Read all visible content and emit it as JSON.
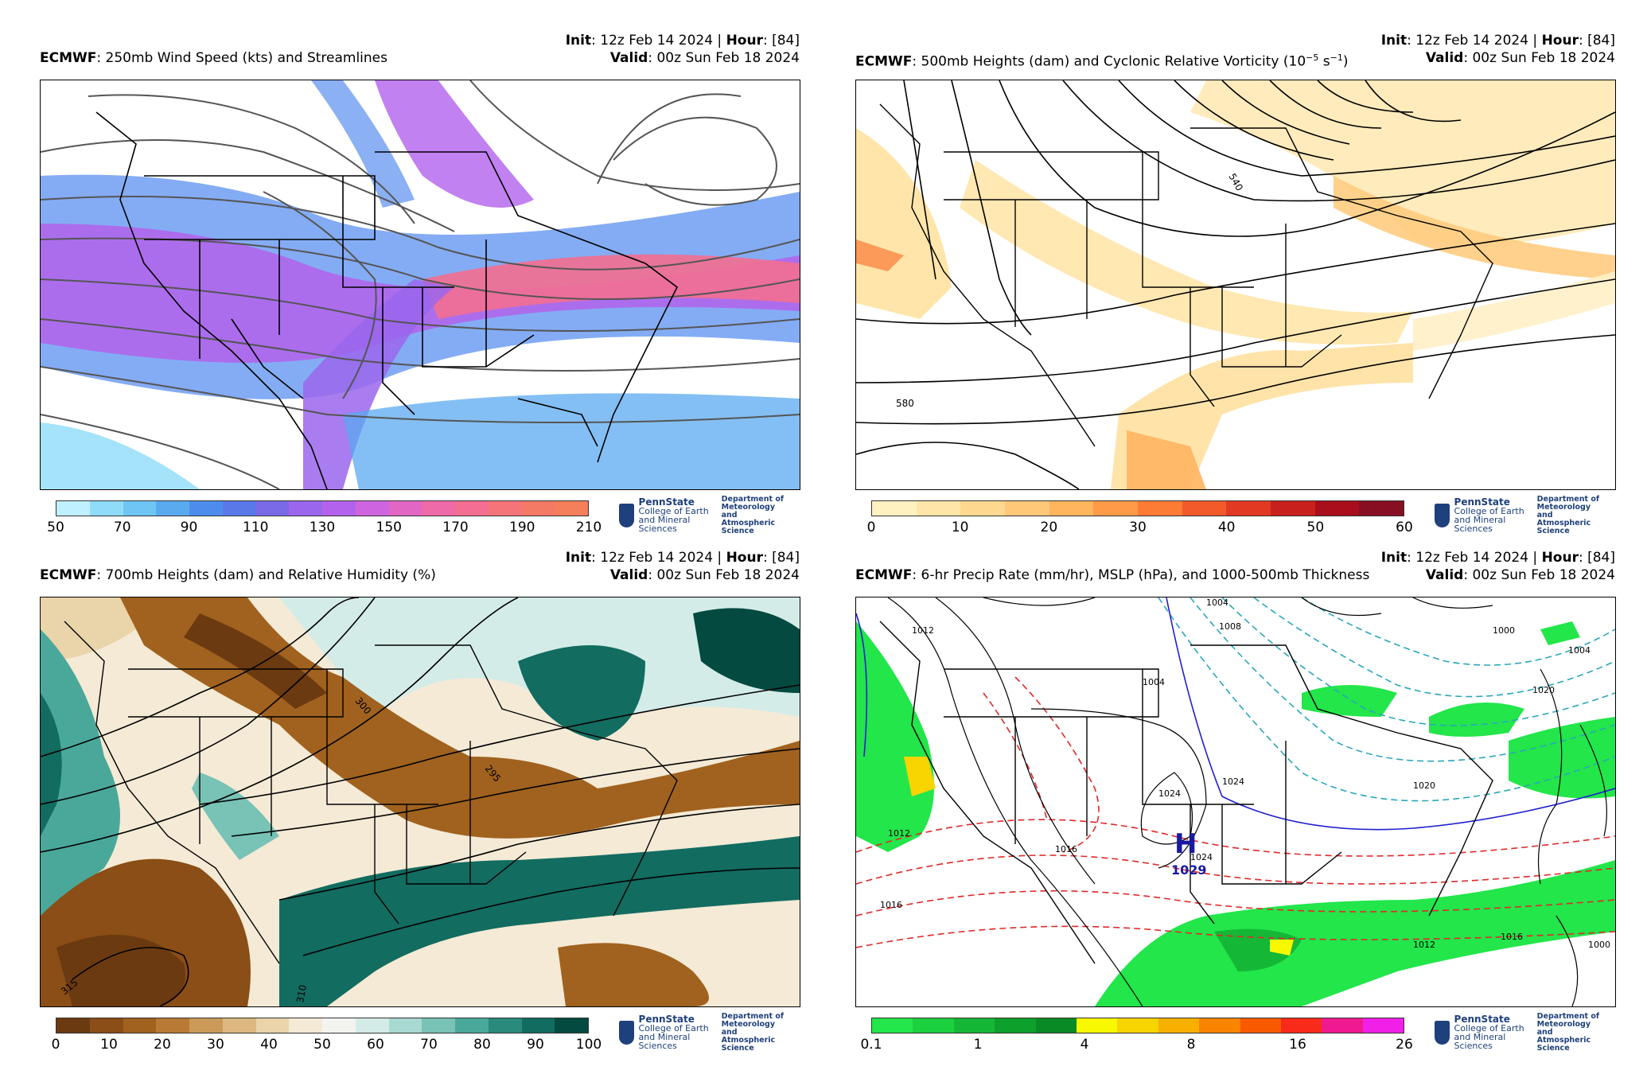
{
  "common": {
    "init_label": "Init",
    "init_value": ": 12z Feb 14 2024 | ",
    "hour_label": "Hour",
    "hour_value": ": [84]",
    "valid_label": "Valid",
    "valid_value": ": 00z Sun Feb 18 2024",
    "model": "ECMWF",
    "logo_name": "PennState",
    "logo_college1": "College of Earth",
    "logo_college2": "and Mineral Sciences",
    "logo_dept1": "Department of",
    "logo_dept2": "Meteorology and",
    "logo_dept3": "Atmospheric Science"
  },
  "panels": [
    {
      "title": ": 250mb Wind Speed (kts) and Streamlines",
      "colorbar_ticks": [
        "50",
        "70",
        "90",
        "110",
        "130",
        "150",
        "170",
        "190",
        "210"
      ],
      "colorbar_colors": [
        "#bff0ff",
        "#8fdcfa",
        "#6fc6f5",
        "#5aaaf0",
        "#4d8cec",
        "#5a78e8",
        "#7a6ae8",
        "#9a66ec",
        "#b262ec",
        "#cf64e0",
        "#e266c4",
        "#ef6aa8",
        "#f36e90",
        "#f4747a",
        "#f47a66",
        "#f47f5a"
      ]
    },
    {
      "title": ": 500mb Heights (dam) and Cyclonic Relative Vorticity (10",
      "title_exp": "−5",
      "title_unit": " s",
      "title_unit_exp": "−1",
      "title_close": ")",
      "colorbar_ticks": [
        "0",
        "10",
        "20",
        "30",
        "40",
        "50",
        "60"
      ],
      "colorbar_colors": [
        "#fff2c0",
        "#ffe6a8",
        "#ffd890",
        "#ffc878",
        "#ffb45e",
        "#ff9a48",
        "#fc7c36",
        "#f25a2a",
        "#e23a22",
        "#c8201c",
        "#a80e1c",
        "#861022"
      ],
      "contour_labels": [
        "540",
        "580"
      ]
    },
    {
      "title": ": 700mb Heights (dam) and Relative Humidity (%)",
      "colorbar_ticks": [
        "0",
        "10",
        "20",
        "30",
        "40",
        "50",
        "60",
        "70",
        "80",
        "90",
        "100"
      ],
      "colorbar_colors": [
        "#6b3a10",
        "#8a4e16",
        "#a0621e",
        "#b87a34",
        "#cc9a58",
        "#dcb880",
        "#ead4aa",
        "#f4ead6",
        "#f3f3f0",
        "#d4ece8",
        "#a8dad2",
        "#78c2b6",
        "#4aa89a",
        "#2a8a7c",
        "#126c60",
        "#044a40"
      ],
      "contour_labels": [
        "300",
        "295",
        "315",
        "310"
      ]
    },
    {
      "title": ": 6-hr Precip Rate (mm/hr), MSLP (hPa), and 1000-500mb Thickness",
      "colorbar_ticks": [
        "0.1",
        "1",
        "4",
        "8",
        "16",
        "26"
      ],
      "colorbar_colors": [
        "#22e64a",
        "#1cd040",
        "#14b836",
        "#0ea02c",
        "#0a8a24",
        "#f8f800",
        "#f8d400",
        "#f8b000",
        "#f88400",
        "#f85a00",
        "#f82a1a",
        "#f01a90",
        "#f020e8"
      ],
      "high_letter": "H",
      "high_value": "1029",
      "contour_labels": [
        "1012",
        "1004",
        "1008",
        "1004",
        "1000",
        "1004",
        "1020",
        "1024",
        "1024",
        "1016",
        "1012",
        "1016",
        "1024",
        "1012",
        "1016",
        "1000",
        "1020"
      ]
    }
  ]
}
